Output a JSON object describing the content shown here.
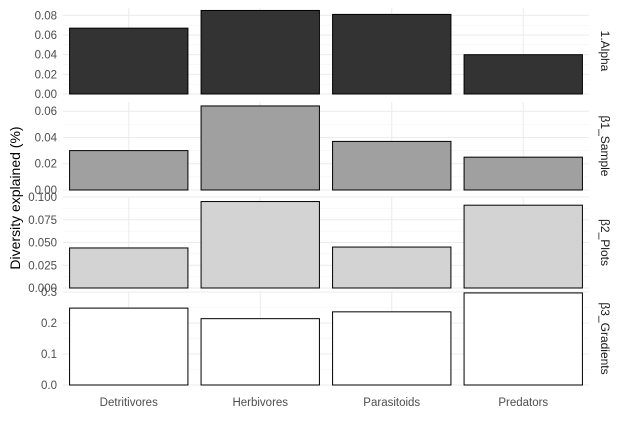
{
  "chart_data": {
    "type": "bar",
    "ylabel": "Diversity explained (%)",
    "xlabel": "",
    "categories": [
      "Detritivores",
      "Herbivores",
      "Parasitoids",
      "Predators"
    ],
    "grid": true,
    "facet_layout": "rows",
    "panels": [
      {
        "name": "1.Alpha",
        "fill": "#333333",
        "values": [
          0.067,
          0.085,
          0.081,
          0.04
        ],
        "ylim": [
          0,
          0.0875
        ],
        "ticks": [
          0.0,
          0.02,
          0.04,
          0.06,
          0.08
        ],
        "tick_labels": [
          "0.00",
          "0.02",
          "0.04",
          "0.06",
          "0.08"
        ]
      },
      {
        "name": "β1_Sample",
        "fill": "#a0a0a0",
        "values": [
          0.03,
          0.064,
          0.037,
          0.025
        ],
        "ylim": [
          0,
          0.067
        ],
        "ticks": [
          0.0,
          0.02,
          0.04,
          0.06
        ],
        "tick_labels": [
          "0.00",
          "0.02",
          "0.04",
          "0.06"
        ]
      },
      {
        "name": "β2_Plots",
        "fill": "#d3d3d3",
        "values": [
          0.044,
          0.095,
          0.045,
          0.091
        ],
        "ylim": [
          0,
          0.1
        ],
        "ticks": [
          0.0,
          0.025,
          0.05,
          0.075,
          0.1
        ],
        "tick_labels": [
          "0.000",
          "0.025",
          "0.050",
          "0.075",
          "0.100"
        ]
      },
      {
        "name": "β3_Gradients",
        "fill": "#ffffff",
        "values": [
          0.248,
          0.214,
          0.236,
          0.297
        ],
        "ylim": [
          0,
          0.3
        ],
        "ticks": [
          0.0,
          0.1,
          0.2,
          0.3
        ],
        "tick_labels": [
          "0.0",
          "0.1",
          "0.2",
          "0.3"
        ]
      }
    ]
  }
}
